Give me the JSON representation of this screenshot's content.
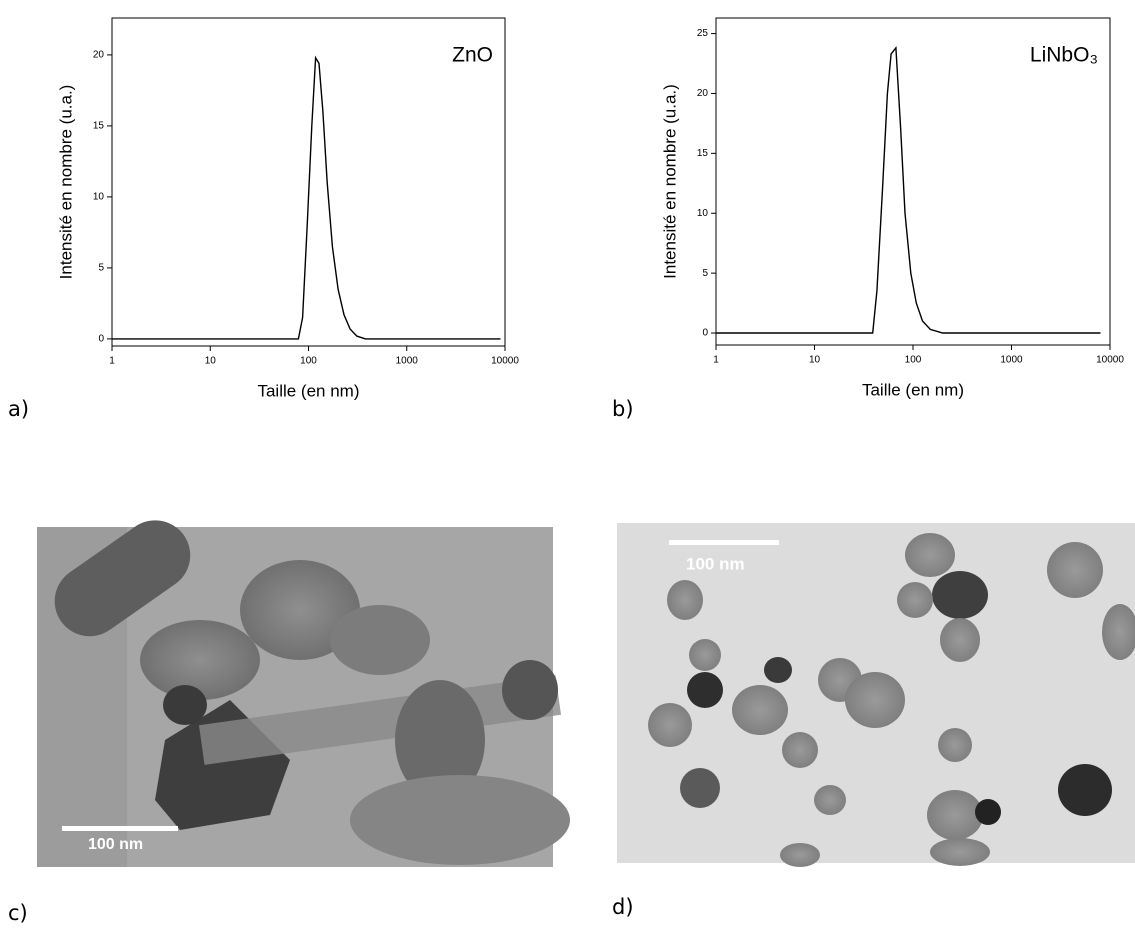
{
  "chart_data": [
    {
      "type": "line",
      "annotation": "ZnO",
      "xlabel": "Taille (en nm)",
      "ylabel": "Intensité en nombre (u.a.)",
      "xscale": "log",
      "color": "#000000",
      "x": [
        1,
        79,
        87,
        97,
        108,
        118,
        128,
        140,
        155,
        175,
        200,
        230,
        265,
        310,
        380,
        9000
      ],
      "values": [
        0,
        0,
        1.5,
        8,
        15,
        19.8,
        19.4,
        16,
        11,
        6.5,
        3.5,
        1.7,
        0.7,
        0.2,
        0,
        0
      ],
      "xlim": [
        1,
        10000
      ],
      "xticks": [
        1,
        10,
        100,
        1000,
        10000
      ],
      "ylim": [
        -0.5,
        22.6
      ],
      "yticks": [
        0,
        5,
        10,
        15,
        20
      ]
    },
    {
      "type": "line",
      "annotation": "LiNbO₃",
      "xlabel": "Taille (en nm)",
      "ylabel": "Intensité en nombre (u.a.)",
      "xscale": "log",
      "color": "#000000",
      "x": [
        1,
        39,
        43,
        49,
        55,
        60,
        67,
        75,
        83,
        95,
        108,
        125,
        150,
        200,
        8000
      ],
      "values": [
        0,
        0,
        3.5,
        12,
        20,
        23.3,
        23.8,
        17,
        10,
        5,
        2.5,
        1,
        0.3,
        0,
        0
      ],
      "xlim": [
        1,
        10000
      ],
      "xticks": [
        1,
        10,
        100,
        1000,
        10000
      ],
      "ylim": [
        -1,
        26.3
      ],
      "yticks": [
        0,
        5,
        10,
        15,
        20,
        25
      ]
    }
  ],
  "panel_labels": [
    "a)",
    "b)",
    "c)",
    "d)"
  ],
  "images": [
    {
      "scale_bar": "100 nm"
    },
    {
      "scale_bar": "100 nm"
    }
  ]
}
